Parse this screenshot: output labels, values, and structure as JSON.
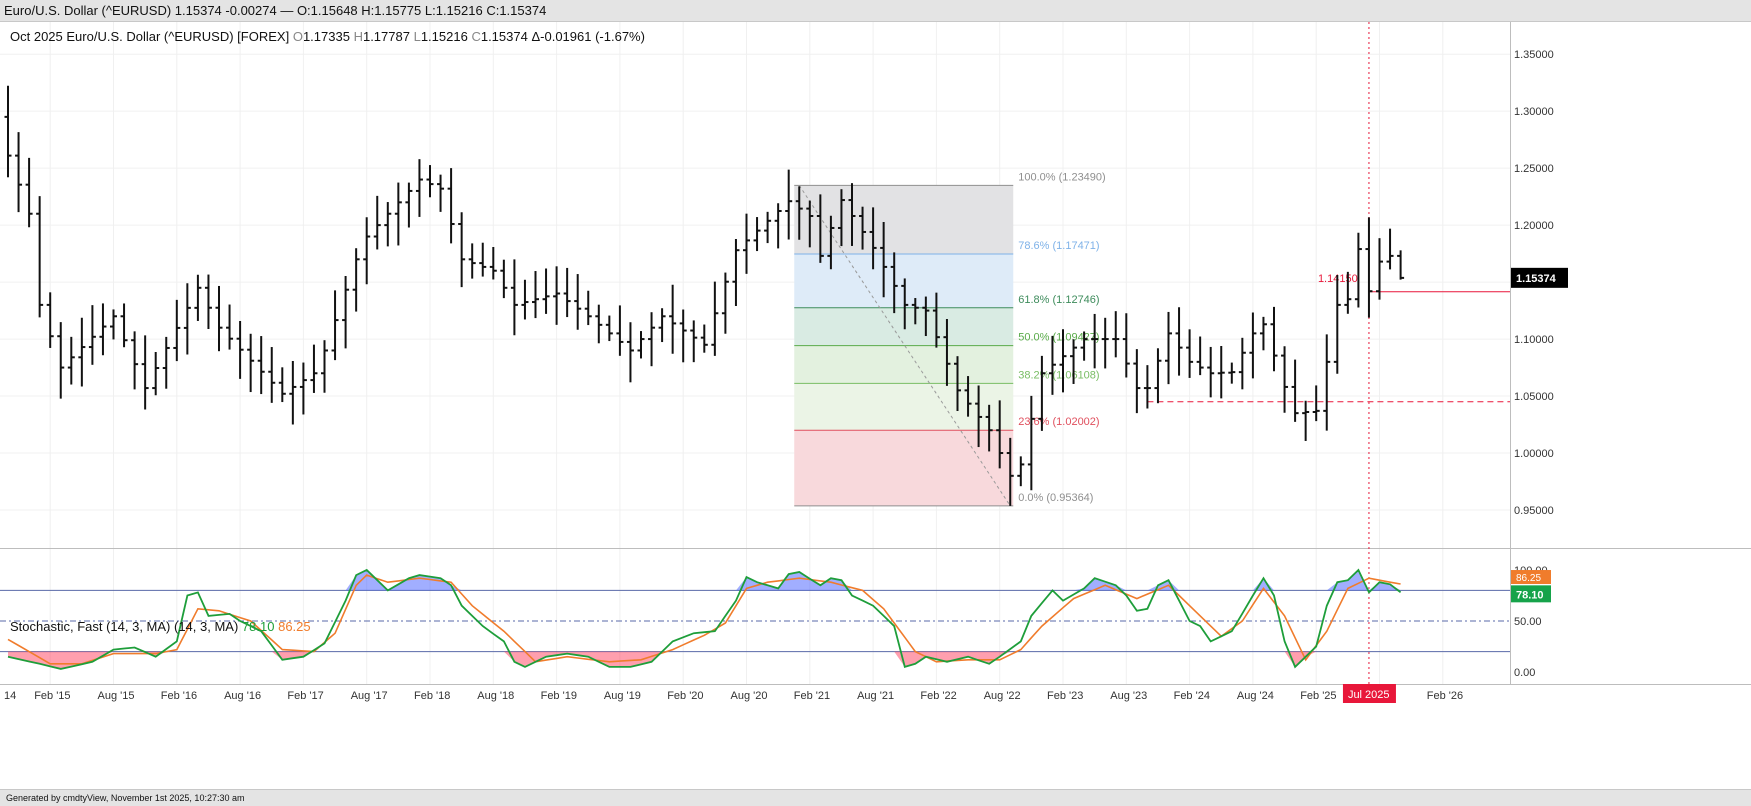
{
  "window_title": "Euro/U.S. Dollar (^EURUSD) 1.15374 -0.00274 — O:1.15648 H:1.15775 L:1.15216 C:1.15374",
  "header": {
    "period": "Oct 2025",
    "instrument": "Euro/U.S. Dollar (^EURUSD) [FOREX]",
    "open_label": "O",
    "open": "1.17335",
    "high_label": "H",
    "high": "1.17787",
    "low_label": "L",
    "low": "1.15216",
    "close_label": "C",
    "close": "1.15374",
    "change": "Δ-0.01961 (-1.67%)"
  },
  "stochastic_header": {
    "label": "Stochastic, Fast (14, 3, MA)  (14, 3, MA)",
    "k_value": "78.10",
    "d_value": "86.25"
  },
  "footer": "Generated by cmdtyView, November 1st 2025, 10:27:30 am",
  "colors": {
    "bars": "#111111",
    "k_line": "#1e9e3a",
    "d_line": "#f07c2c",
    "overbought_fill": "#2f4bff",
    "oversold_fill": "#ff2b4b",
    "accent_red": "#e8173a"
  },
  "chart_data": [
    {
      "type": "ohlc",
      "interval": "monthly",
      "ylim": [
        0.93,
        1.37
      ],
      "y_ticks": [
        "1.35000",
        "1.30000",
        "1.25000",
        "1.20000",
        "1.15000",
        "1.10000",
        "1.05000",
        "1.00000",
        "0.95000"
      ],
      "x_ticks": [
        "14",
        "Feb '15",
        "Aug '15",
        "Feb '16",
        "Aug '16",
        "Feb '17",
        "Aug '17",
        "Feb '18",
        "Aug '18",
        "Feb '19",
        "Aug '19",
        "Feb '20",
        "Aug '20",
        "Feb '21",
        "Aug '21",
        "Feb '22",
        "Aug '22",
        "Feb '23",
        "Aug '23",
        "Feb '24",
        "Aug '24",
        "Feb '25",
        "Jul 2025",
        "Feb '26"
      ],
      "last_price_label": "1.15374",
      "start_month": "Oct 2014",
      "close_anchors": [
        [
          "Oct 2014",
          1.261
        ],
        [
          "Dec 2014",
          1.21
        ],
        [
          "Jan 2015",
          1.13
        ],
        [
          "Mar 2015",
          1.075
        ],
        [
          "Aug 2015",
          1.12
        ],
        [
          "Nov 2015",
          1.057
        ],
        [
          "Apr 2016",
          1.145
        ],
        [
          "Jun 2016",
          1.11
        ],
        [
          "Dec 2016",
          1.052
        ],
        [
          "Mar 2017",
          1.07
        ],
        [
          "Apr 2017",
          1.09
        ],
        [
          "Jul 2017",
          1.17
        ],
        [
          "Aug 2017",
          1.19
        ],
        [
          "Jan 2018",
          1.24
        ],
        [
          "Mar 2018",
          1.232
        ],
        [
          "May 2018",
          1.17
        ],
        [
          "Aug 2018",
          1.16
        ],
        [
          "Oct 2018",
          1.13
        ],
        [
          "Feb 2019",
          1.14
        ],
        [
          "May 2019",
          1.12
        ],
        [
          "Sep 2019",
          1.09
        ],
        [
          "Dec 2019",
          1.12
        ],
        [
          "Apr 2020",
          1.095
        ],
        [
          "Jul 2020",
          1.178
        ],
        [
          "Dec 2020",
          1.221
        ],
        [
          "Feb 2021",
          1.208
        ],
        [
          "Mar 2021",
          1.173
        ],
        [
          "May 2021",
          1.222
        ],
        [
          "Aug 2021",
          1.18
        ],
        [
          "Nov 2021",
          1.13
        ],
        [
          "Jan 2022",
          1.125
        ],
        [
          "Apr 2022",
          1.055
        ],
        [
          "Jul 2022",
          1.02
        ],
        [
          "Sep 2022",
          0.98
        ],
        [
          "Oct 2022",
          0.99
        ],
        [
          "Dec 2022",
          1.07
        ],
        [
          "Apr 2023",
          1.1
        ],
        [
          "Jul 2023",
          1.1
        ],
        [
          "Sep 2023",
          1.057
        ],
        [
          "Oct 2023",
          1.057
        ],
        [
          "Dec 2023",
          1.105
        ],
        [
          "Feb 2024",
          1.08
        ],
        [
          "Apr 2024",
          1.07
        ],
        [
          "Jun 2024",
          1.071
        ],
        [
          "Aug 2024",
          1.105
        ],
        [
          "Sep 2024",
          1.113
        ],
        [
          "Nov 2024",
          1.058
        ],
        [
          "Dec 2024",
          1.035
        ],
        [
          "Jan 2025",
          1.036
        ],
        [
          "Feb 2025",
          1.037
        ],
        [
          "Mar 2025",
          1.08
        ],
        [
          "Apr 2025",
          1.13
        ],
        [
          "May 2025",
          1.135
        ],
        [
          "Jun 2025",
          1.179
        ],
        [
          "Jul 2025",
          1.142
        ],
        [
          "Aug 2025",
          1.168
        ],
        [
          "Sep 2025",
          1.173
        ],
        [
          "Oct 2025",
          1.1537
        ]
      ],
      "annotations": [
        {
          "text": "1.14150",
          "color": "#e8173a",
          "price": 1.1415,
          "style": "solid",
          "from": "Jul 2025"
        },
        {
          "text": "",
          "color": "#e8173a",
          "price": 1.045,
          "style": "dashed",
          "from": "Oct 2023"
        },
        {
          "text": "",
          "color": "#e8173a",
          "style": "dotted-vertical",
          "at": "Jul 2025"
        }
      ],
      "fibonacci": {
        "from_month": "Jan 2021",
        "to_month": "Sep 2022",
        "levels": [
          {
            "label": "100.0% (1.23490)",
            "price": 1.2349,
            "color": "#8f8f8f",
            "fill": "#e2e2e4"
          },
          {
            "label": "78.6% (1.17471)",
            "price": 1.17471,
            "color": "#7fb2e8",
            "fill": "#deebf8"
          },
          {
            "label": "61.8% (1.12746)",
            "price": 1.12746,
            "color": "#3e8c5c",
            "fill": "#d9ebe3"
          },
          {
            "label": "50.0% (1.09427)",
            "price": 1.09427,
            "color": "#5aab4a",
            "fill": "#e3f1df"
          },
          {
            "label": "38.2% (1.06108)",
            "price": 1.06108,
            "color": "#79bd64",
            "fill": "#ebf4e6"
          },
          {
            "label": "23.6% (1.02002)",
            "price": 1.02002,
            "color": "#e0505e",
            "fill": "#f8d9dc"
          },
          {
            "label": "0.0% (0.95364)",
            "price": 0.95364,
            "color": "#8f8f8f",
            "fill": ""
          }
        ]
      }
    },
    {
      "type": "line",
      "name": "Stochastic, Fast (14, 3, MA)",
      "ylim": [
        -5,
        105
      ],
      "y_ticks": [
        "100.00",
        "50.00",
        "0.00"
      ],
      "overbought": 80,
      "oversold": 20,
      "midline": 50,
      "k_label": "78.10",
      "d_label": "86.25",
      "k_anchors": [
        [
          "Oct 2014",
          15
        ],
        [
          "Jan 2015",
          8
        ],
        [
          "Mar 2015",
          3
        ],
        [
          "Jun 2015",
          10
        ],
        [
          "Aug 2015",
          22
        ],
        [
          "Oct 2015",
          24
        ],
        [
          "Dec 2015",
          15
        ],
        [
          "Feb 2016",
          30
        ],
        [
          "Mar 2016",
          75
        ],
        [
          "Apr 2016",
          78
        ],
        [
          "May 2016",
          55
        ],
        [
          "Jul 2016",
          57
        ],
        [
          "Aug 2016",
          50
        ],
        [
          "Oct 2016",
          40
        ],
        [
          "Dec 2016",
          12
        ],
        [
          "Feb 2017",
          15
        ],
        [
          "Apr 2017",
          28
        ],
        [
          "Jun 2017",
          70
        ],
        [
          "Jul 2017",
          95
        ],
        [
          "Aug 2017",
          100
        ],
        [
          "Sep 2017",
          90
        ],
        [
          "Oct 2017",
          80
        ],
        [
          "Dec 2017",
          92
        ],
        [
          "Jan 2018",
          95
        ],
        [
          "Mar 2018",
          92
        ],
        [
          "Apr 2018",
          85
        ],
        [
          "May 2018",
          65
        ],
        [
          "Jul 2018",
          45
        ],
        [
          "Sep 2018",
          30
        ],
        [
          "Oct 2018",
          10
        ],
        [
          "Nov 2018",
          5
        ],
        [
          "Jan 2019",
          15
        ],
        [
          "Mar 2019",
          18
        ],
        [
          "May 2019",
          15
        ],
        [
          "Jul 2019",
          5
        ],
        [
          "Sep 2019",
          5
        ],
        [
          "Nov 2019",
          10
        ],
        [
          "Jan 2020",
          30
        ],
        [
          "Mar 2020",
          38
        ],
        [
          "May 2020",
          40
        ],
        [
          "Jul 2020",
          70
        ],
        [
          "Aug 2020",
          93
        ],
        [
          "Sep 2020",
          88
        ],
        [
          "Nov 2020",
          82
        ],
        [
          "Dec 2020",
          96
        ],
        [
          "Jan 2021",
          98
        ],
        [
          "Mar 2021",
          85
        ],
        [
          "Apr 2021",
          92
        ],
        [
          "May 2021",
          90
        ],
        [
          "Jun 2021",
          75
        ],
        [
          "Jul 2021",
          70
        ],
        [
          "Aug 2021",
          65
        ],
        [
          "Sep 2021",
          55
        ],
        [
          "Oct 2021",
          45
        ],
        [
          "Nov 2021",
          5
        ],
        [
          "Dec 2021",
          8
        ],
        [
          "Jan 2022",
          15
        ],
        [
          "Mar 2022",
          10
        ],
        [
          "May 2022",
          15
        ],
        [
          "Jul 2022",
          8
        ],
        [
          "Aug 2022",
          15
        ],
        [
          "Oct 2022",
          30
        ],
        [
          "Nov 2022",
          55
        ],
        [
          "Jan 2023",
          80
        ],
        [
          "Feb 2023",
          70
        ],
        [
          "Apr 2023",
          82
        ],
        [
          "May 2023",
          92
        ],
        [
          "Jul 2023",
          85
        ],
        [
          "Aug 2023",
          75
        ],
        [
          "Sep 2023",
          60
        ],
        [
          "Oct 2023",
          62
        ],
        [
          "Nov 2023",
          85
        ],
        [
          "Dec 2023",
          90
        ],
        [
          "Jan 2024",
          70
        ],
        [
          "Feb 2024",
          50
        ],
        [
          "Mar 2024",
          45
        ],
        [
          "Apr 2024",
          30
        ],
        [
          "Jun 2024",
          40
        ],
        [
          "Aug 2024",
          75
        ],
        [
          "Sep 2024",
          92
        ],
        [
          "Oct 2024",
          75
        ],
        [
          "Nov 2024",
          30
        ],
        [
          "Dec 2024",
          5
        ],
        [
          "Jan 2025",
          15
        ],
        [
          "Feb 2025",
          25
        ],
        [
          "Mar 2025",
          65
        ],
        [
          "Apr 2025",
          88
        ],
        [
          "May 2025",
          90
        ],
        [
          "Jun 2025",
          100
        ],
        [
          "Jul 2025",
          78
        ],
        [
          "Aug 2025",
          88
        ],
        [
          "Sep 2025",
          86
        ],
        [
          "Oct 2025",
          78.1
        ]
      ],
      "d_anchors": [
        [
          "Oct 2014",
          32
        ],
        [
          "Feb 2015",
          8
        ],
        [
          "May 2015",
          8
        ],
        [
          "Aug 2015",
          18
        ],
        [
          "Dec 2015",
          18
        ],
        [
          "Feb 2016",
          22
        ],
        [
          "Apr 2016",
          62
        ],
        [
          "Jun 2016",
          60
        ],
        [
          "Sep 2016",
          50
        ],
        [
          "Dec 2016",
          22
        ],
        [
          "Mar 2017",
          20
        ],
        [
          "May 2017",
          38
        ],
        [
          "Jul 2017",
          85
        ],
        [
          "Aug 2017",
          95
        ],
        [
          "Oct 2017",
          88
        ],
        [
          "Jan 2018",
          92
        ],
        [
          "Apr 2018",
          88
        ],
        [
          "Jun 2018",
          65
        ],
        [
          "Sep 2018",
          40
        ],
        [
          "Dec 2018",
          10
        ],
        [
          "Mar 2019",
          15
        ],
        [
          "Jul 2019",
          10
        ],
        [
          "Oct 2019",
          12
        ],
        [
          "Jan 2020",
          22
        ],
        [
          "Apr 2020",
          36
        ],
        [
          "Jun 2020",
          48
        ],
        [
          "Aug 2020",
          82
        ],
        [
          "Oct 2020",
          88
        ],
        [
          "Jan 2021",
          92
        ],
        [
          "Apr 2021",
          88
        ],
        [
          "Jul 2021",
          80
        ],
        [
          "Sep 2021",
          62
        ],
        [
          "Dec 2021",
          20
        ],
        [
          "Feb 2022",
          10
        ],
        [
          "May 2022",
          12
        ],
        [
          "Aug 2022",
          12
        ],
        [
          "Oct 2022",
          22
        ],
        [
          "Dec 2022",
          45
        ],
        [
          "Mar 2023",
          72
        ],
        [
          "Jun 2023",
          85
        ],
        [
          "Sep 2023",
          72
        ],
        [
          "Dec 2023",
          85
        ],
        [
          "Mar 2024",
          55
        ],
        [
          "May 2024",
          35
        ],
        [
          "Jul 2024",
          50
        ],
        [
          "Sep 2024",
          82
        ],
        [
          "Nov 2024",
          55
        ],
        [
          "Jan 2025",
          12
        ],
        [
          "Mar 2025",
          40
        ],
        [
          "May 2025",
          82
        ],
        [
          "Jul 2025",
          92
        ],
        [
          "Sep 2025",
          88
        ],
        [
          "Oct 2025",
          86.25
        ]
      ]
    }
  ]
}
